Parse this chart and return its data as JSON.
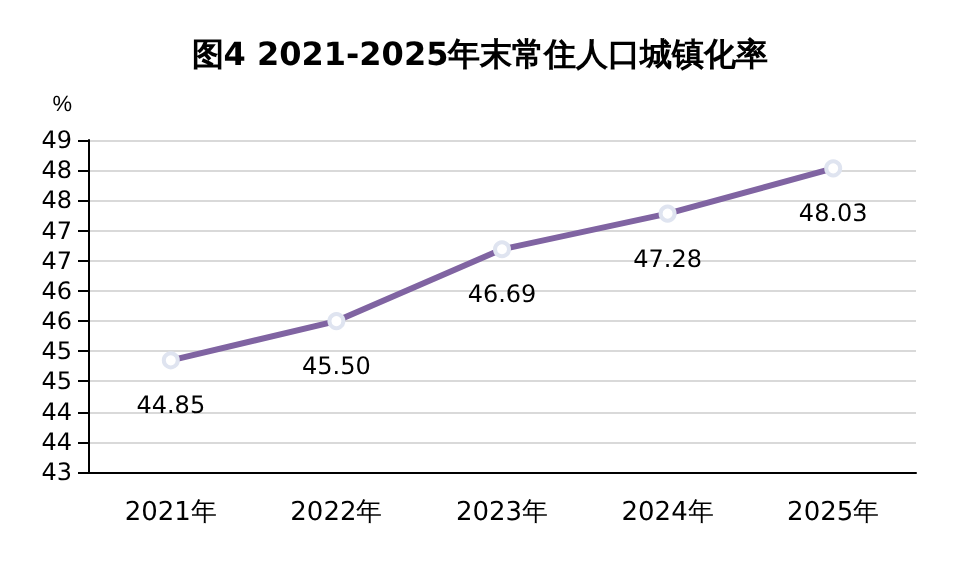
{
  "chart_data": {
    "type": "line",
    "title": "图4 2021-2025年末常住人口城镇化率",
    "ylabel": "%",
    "categories": [
      "2021年",
      "2022年",
      "2023年",
      "2024年",
      "2025年"
    ],
    "series": [
      {
        "color": "#8064a2",
        "values": [
          44.85,
          45.5,
          46.69,
          47.28,
          48.03
        ],
        "value_labels": [
          "44.85",
          "45.50",
          "46.69",
          "47.28",
          "48.03"
        ]
      }
    ],
    "ylim": [
      43,
      48.5
    ],
    "yticks": [
      43,
      {
        "value": 43.5,
        "label": "44"
      },
      44,
      {
        "value": 44.5,
        "label": "45"
      },
      45,
      {
        "value": 45.5,
        "label": "46"
      },
      46,
      {
        "value": 46.5,
        "label": "47"
      },
      47,
      {
        "value": 47.5,
        "label": "48"
      },
      48,
      {
        "value": 48.5,
        "label": "49"
      }
    ],
    "grid": "y",
    "marker": "circle",
    "line_style": "solid"
  }
}
